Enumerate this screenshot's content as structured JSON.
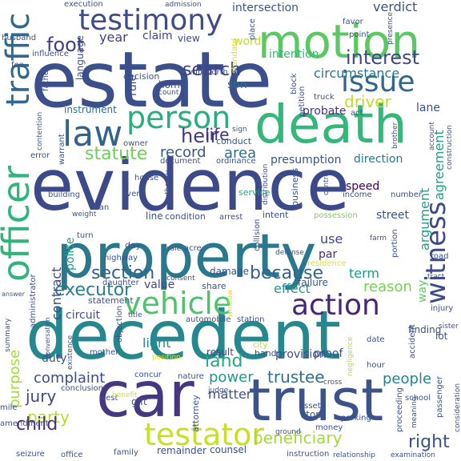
{
  "words": [
    {
      "text": "estate",
      "color": "#3b4f8a"
    },
    {
      "text": "evidence",
      "color": "#3d4a89"
    },
    {
      "text": "decedent",
      "color": "#25888e"
    },
    {
      "text": "property",
      "color": "#2a788e"
    },
    {
      "text": "death",
      "color": "#35b779"
    },
    {
      "text": "car",
      "color": "#453781"
    },
    {
      "text": "trust",
      "color": "#3b528b"
    },
    {
      "text": "motion",
      "color": "#5cc863"
    },
    {
      "text": "testimony",
      "color": "#3e4c8a"
    },
    {
      "text": "law",
      "color": "#33638d"
    },
    {
      "text": "officer",
      "color": "#2fb47c"
    },
    {
      "text": "traffic",
      "color": "#31688e"
    },
    {
      "text": "person",
      "color": "#29af7f"
    },
    {
      "text": "issue",
      "color": "#31668e"
    },
    {
      "text": "vehicle",
      "color": "#4ec36b"
    },
    {
      "text": "testator",
      "color": "#c8e020"
    },
    {
      "text": "action",
      "color": "#482576"
    },
    {
      "text": "witness",
      "color": "#3e4a89"
    },
    {
      "text": "interest",
      "color": "#3f4889"
    },
    {
      "text": "heir",
      "color": "#443a83"
    },
    {
      "text": "life",
      "color": "#46337f"
    },
    {
      "text": "foot",
      "color": "#433d84"
    },
    {
      "text": "search",
      "color": "#424186"
    },
    {
      "text": "statute",
      "color": "#6ece58"
    },
    {
      "text": "record",
      "color": "#38588c"
    },
    {
      "text": "area",
      "color": "#2d708e"
    },
    {
      "text": "because",
      "color": "#34618d"
    },
    {
      "text": "section",
      "color": "#33638d"
    },
    {
      "text": "executor",
      "color": "#277f8e"
    },
    {
      "text": "jury",
      "color": "#3f4788"
    },
    {
      "text": "land",
      "color": "#22a884"
    },
    {
      "text": "party",
      "color": "#b5de2b"
    },
    {
      "text": "child",
      "color": "#472c7a"
    },
    {
      "text": "beneficiary",
      "color": "#a2da37"
    },
    {
      "text": "right",
      "color": "#3b528b"
    },
    {
      "text": "complaint",
      "color": "#3d4d8a"
    },
    {
      "text": "purpose",
      "color": "#a5db36"
    },
    {
      "text": "trustee",
      "color": "#2d718e"
    },
    {
      "text": "people",
      "color": "#26828e"
    },
    {
      "text": "argument",
      "color": "#1f9e89"
    },
    {
      "text": "agreement",
      "color": "#1fa088"
    },
    {
      "text": "driver",
      "color": "#bddf26"
    },
    {
      "text": "circumstance",
      "color": "#2c738e"
    },
    {
      "text": "intersection",
      "color": "#38588c"
    },
    {
      "text": "verdict",
      "color": "#3a548c"
    },
    {
      "text": "year",
      "color": "#424086"
    },
    {
      "text": "claim",
      "color": "#404588"
    },
    {
      "text": "view",
      "color": "#3e4989"
    },
    {
      "text": "word",
      "color": "#c0df25"
    },
    {
      "text": "intention",
      "color": "#35b779"
    },
    {
      "text": "contract",
      "color": "#3f4788"
    },
    {
      "text": "police",
      "color": "#1f9e89"
    },
    {
      "text": "light",
      "color": "#23898e"
    },
    {
      "text": "power",
      "color": "#1e9c89"
    },
    {
      "text": "matter",
      "color": "#3b528b"
    },
    {
      "text": "duty",
      "color": "#3b528b"
    },
    {
      "text": "circuit",
      "color": "#3b528b"
    },
    {
      "text": "value",
      "color": "#414487"
    },
    {
      "text": "effect",
      "color": "#1f9a8a"
    },
    {
      "text": "reason",
      "color": "#7ad151"
    },
    {
      "text": "term",
      "color": "#1e9b8a"
    },
    {
      "text": "use",
      "color": "#404688"
    },
    {
      "text": "par",
      "color": "#482878"
    },
    {
      "text": "way",
      "color": "#5ec962"
    },
    {
      "text": "street",
      "color": "#3b528b"
    },
    {
      "text": "speed",
      "color": "#440154"
    },
    {
      "text": "probate",
      "color": "#46327e"
    },
    {
      "text": "direction",
      "color": "#2a788e"
    },
    {
      "text": "presumption",
      "color": "#3b528b"
    },
    {
      "text": "provision",
      "color": "#3e4c8a"
    },
    {
      "text": "proof",
      "color": "#3b528b"
    },
    {
      "text": "result",
      "color": "#424186"
    },
    {
      "text": "lane",
      "color": "#3b528b"
    },
    {
      "text": "home",
      "color": "#3b528b"
    },
    {
      "text": "son",
      "color": "#2d718e"
    },
    {
      "text": "rule",
      "color": "#3e4a89"
    },
    {
      "text": "instrument",
      "color": "#2c728e"
    },
    {
      "text": "language",
      "color": "#3b528b"
    },
    {
      "text": "influence",
      "color": "#3b528b"
    },
    {
      "text": "decision",
      "color": "#3b528b"
    },
    {
      "text": "wife",
      "color": "#3b528b"
    },
    {
      "text": "north",
      "color": "#3b528b"
    },
    {
      "text": "count",
      "color": "#3b528b"
    },
    {
      "text": "conduct",
      "color": "#3b528b"
    },
    {
      "text": "sign",
      "color": "#3b528b"
    },
    {
      "text": "document",
      "color": "#3b528b"
    },
    {
      "text": "ordinance",
      "color": "#3b528b"
    },
    {
      "text": "service",
      "color": "#23a983"
    },
    {
      "text": "house",
      "color": "#3b528b"
    },
    {
      "text": "event",
      "color": "#3b528b"
    },
    {
      "text": "building",
      "color": "#3b528b"
    },
    {
      "text": "man",
      "color": "#3b528b"
    },
    {
      "text": "weight",
      "color": "#3b528b"
    },
    {
      "text": "line",
      "color": "#3b528b"
    },
    {
      "text": "condition",
      "color": "#3b528b"
    },
    {
      "text": "arrest",
      "color": "#3b528b"
    },
    {
      "text": "intent",
      "color": "#3b528b"
    },
    {
      "text": "possession",
      "color": "#7ad151"
    },
    {
      "text": "day",
      "color": "#3b528b"
    },
    {
      "text": "daughter",
      "color": "#3b528b"
    },
    {
      "text": "highway",
      "color": "#3b528b"
    },
    {
      "text": "turn",
      "color": "#3b528b"
    },
    {
      "text": "acre",
      "color": "#3b528b"
    },
    {
      "text": "damage",
      "color": "#3b528b"
    },
    {
      "text": "sale",
      "color": "#3b528b"
    },
    {
      "text": "share",
      "color": "#3b528b"
    },
    {
      "text": "failure",
      "color": "#3b528b"
    },
    {
      "text": "residence",
      "color": "#dfe318"
    },
    {
      "text": "statement",
      "color": "#3b528b"
    },
    {
      "text": "automobile",
      "color": "#3b528b"
    },
    {
      "text": "station",
      "color": "#3b528b"
    },
    {
      "text": "finding",
      "color": "#3b528b"
    },
    {
      "text": "injury",
      "color": "#3b528b"
    },
    {
      "text": "lot",
      "color": "#3b528b"
    },
    {
      "text": "date",
      "color": "#3b528b"
    },
    {
      "text": "hour",
      "color": "#3b528b"
    },
    {
      "text": "mother",
      "color": "#3b528b"
    },
    {
      "text": "objection",
      "color": "#3b528b"
    },
    {
      "text": "city",
      "color": "#b5de2b"
    },
    {
      "text": "hand",
      "color": "#3b528b"
    },
    {
      "text": "concur",
      "color": "#3b528b"
    },
    {
      "text": "nature",
      "color": "#3b528b"
    },
    {
      "text": "position",
      "color": "#dfe318"
    },
    {
      "text": "judge",
      "color": "#3b528b"
    },
    {
      "text": "gift",
      "color": "#3b528b"
    },
    {
      "text": "west",
      "color": "#3b528b"
    },
    {
      "text": "conclusion",
      "color": "#3b528b"
    },
    {
      "text": "mile",
      "color": "#3b528b"
    },
    {
      "text": "benefit",
      "color": "#dfe318"
    },
    {
      "text": "amendment",
      "color": "#3b528b"
    },
    {
      "text": "seizure",
      "color": "#3b528b"
    },
    {
      "text": "office",
      "color": "#3b528b"
    },
    {
      "text": "family",
      "color": "#3b528b"
    },
    {
      "text": "remainder",
      "color": "#3b528b"
    },
    {
      "text": "counsel",
      "color": "#3b528b"
    },
    {
      "text": "money",
      "color": "#3b528b"
    },
    {
      "text": "instruction",
      "color": "#3b528b"
    },
    {
      "text": "relationship",
      "color": "#3b528b"
    },
    {
      "text": "examination",
      "color": "#3b528b"
    },
    {
      "text": "summary",
      "color": "#3b528b"
    },
    {
      "text": "administrator",
      "color": "#3b528b"
    },
    {
      "text": "stop",
      "color": "#3b528b"
    },
    {
      "text": "asset",
      "color": "#3b528b"
    },
    {
      "text": "ground",
      "color": "#3b528b"
    },
    {
      "text": "parking",
      "color": "#3b528b"
    },
    {
      "text": "school",
      "color": "#3b528b"
    },
    {
      "text": "passenger",
      "color": "#3b528b"
    },
    {
      "text": "sister",
      "color": "#3b528b"
    },
    {
      "text": "road",
      "color": "#3b528b"
    },
    {
      "text": "tract",
      "color": "#3b528b"
    },
    {
      "text": "farm",
      "color": "#3b528b"
    },
    {
      "text": "business",
      "color": "#3b528b"
    },
    {
      "text": "income",
      "color": "#3b528b"
    },
    {
      "text": "number",
      "color": "#3b528b"
    },
    {
      "text": "control",
      "color": "#3b528b"
    },
    {
      "text": "distribution",
      "color": "#3b528b"
    },
    {
      "text": "defense",
      "color": "#3b528b"
    },
    {
      "text": "consent",
      "color": "#3b528b"
    },
    {
      "text": "collision",
      "color": "#3b528b"
    },
    {
      "text": "authority",
      "color": "#3b528b"
    },
    {
      "text": "owner",
      "color": "#3b528b"
    },
    {
      "text": "error",
      "color": "#3b528b"
    },
    {
      "text": "father",
      "color": "#3b528b"
    },
    {
      "text": "fee",
      "color": "#3b528b"
    },
    {
      "text": "husband",
      "color": "#3b528b"
    },
    {
      "text": "execution",
      "color": "#3b528b"
    },
    {
      "text": "admission",
      "color": "#3b528b"
    },
    {
      "text": "favor",
      "color": "#3b528b"
    },
    {
      "text": "place",
      "color": "#3b528b"
    },
    {
      "text": "point",
      "color": "#3b528b"
    },
    {
      "text": "presence",
      "color": "#3b528b"
    },
    {
      "text": "standard",
      "color": "#dfe318"
    },
    {
      "text": "block",
      "color": "#3b528b"
    },
    {
      "text": "petition",
      "color": "#3b528b"
    },
    {
      "text": "truck",
      "color": "#3b528b"
    },
    {
      "text": "act",
      "color": "#3b528b"
    },
    {
      "text": "account",
      "color": "#3b528b"
    },
    {
      "text": "construction",
      "color": "#3b528b"
    },
    {
      "text": "brother",
      "color": "#3b528b"
    },
    {
      "text": "warrant",
      "color": "#3b528b"
    },
    {
      "text": "contention",
      "color": "#3b528b"
    },
    {
      "text": "negligence",
      "color": "#b5de2b"
    },
    {
      "text": "accident",
      "color": "#3b528b"
    },
    {
      "text": "cross",
      "color": "#3b528b"
    },
    {
      "text": "proceeding",
      "color": "#3b528b"
    },
    {
      "text": "consideration",
      "color": "#3b528b"
    },
    {
      "text": "attorney",
      "color": "#3b528b"
    },
    {
      "text": "answer",
      "color": "#3b528b"
    },
    {
      "text": "conversation",
      "color": "#3b528b"
    },
    {
      "text": "existence",
      "color": "#3b528b"
    },
    {
      "text": "window",
      "color": "#dfe318"
    },
    {
      "text": "title",
      "color": "#3b528b"
    },
    {
      "text": "portion",
      "color": "#3b528b"
    },
    {
      "text": "meaning",
      "color": "#3b528b"
    }
  ]
}
